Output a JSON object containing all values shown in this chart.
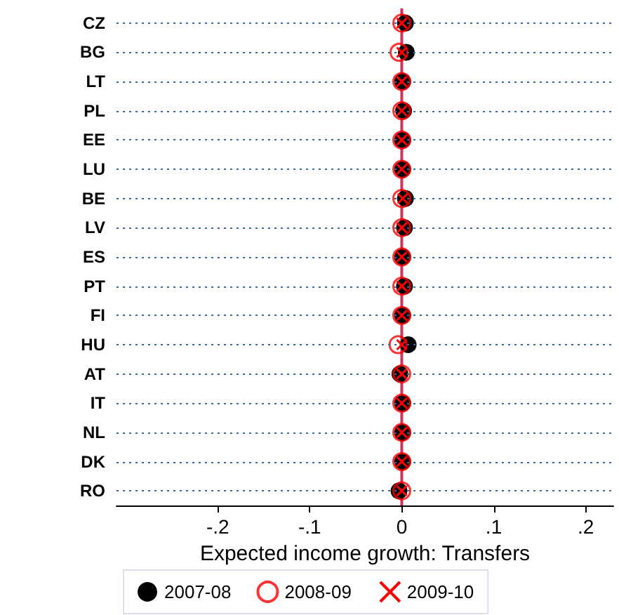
{
  "chart_data": {
    "type": "scatter",
    "orientation": "horizontal",
    "xlabel": "Expected income growth: Transfers",
    "categories": [
      "CZ",
      "BG",
      "LT",
      "PL",
      "EE",
      "LU",
      "BE",
      "LV",
      "ES",
      "PT",
      "FI",
      "HU",
      "AT",
      "IT",
      "NL",
      "DK",
      "RO"
    ],
    "series": [
      {
        "name": "2007-08",
        "color": "#000000",
        "marker": "circle",
        "values": [
          0.004,
          0.005,
          0.001,
          0.002,
          0.001,
          0.001,
          0.004,
          0.003,
          0.001,
          0.003,
          0.001,
          0.007,
          -0.002,
          0.001,
          0.001,
          0.001,
          -0.003
        ]
      },
      {
        "name": "2008-09",
        "color": "#ff0000",
        "marker": "circle",
        "values": [
          0,
          -0.003,
          0,
          0,
          0,
          0,
          0,
          0,
          0,
          0,
          0,
          -0.004,
          0,
          0,
          0,
          0,
          0
        ]
      },
      {
        "name": "2009-10",
        "color": "#ff0000",
        "marker": "cross",
        "values": [
          0,
          0,
          0,
          0,
          0,
          0,
          0.001,
          0,
          0,
          0,
          0,
          0,
          0,
          0,
          0,
          0,
          0
        ]
      }
    ],
    "xlim": [
      -0.31,
      0.23
    ],
    "xticks": [
      {
        "value": -0.2,
        "label": "-.2"
      },
      {
        "value": -0.1,
        "label": "-.1"
      },
      0,
      {
        "value": 0.1,
        "label": ".1"
      },
      {
        "value": 0.2,
        "label": ".2"
      }
    ],
    "ref_lines": [
      {
        "axis": "x",
        "value": 0,
        "color": "#c8385a"
      }
    ],
    "grid": "y",
    "legend": "bottom"
  }
}
